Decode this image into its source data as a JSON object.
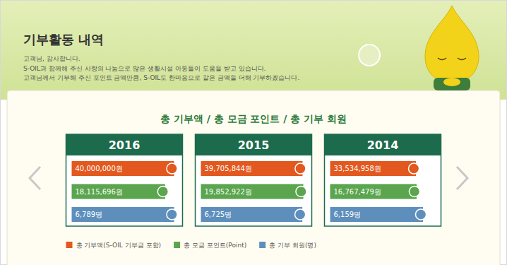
{
  "header": {
    "title": "기부활동 내역",
    "lines": [
      "고객님, 감사합니다.",
      "S-OIL과 함께해 주신 사랑의 나눔으로 많은 생활시설 아동들이 도움을 받고 있습니다.",
      "고객님께서 기부해 주신 포인트 금액만큼, S-OIL도 한마음으로 같은 금액을 더해 기부하겠습니다."
    ]
  },
  "chart_data": {
    "type": "bar",
    "orientation": "horizontal",
    "title": "총 기부액 / 총 모금 포인트 / 총 기부 회원",
    "categories": [
      "2016",
      "2015",
      "2014"
    ],
    "series": [
      {
        "name": "총 기부액(S-OIL 기부금 포함)",
        "color": "#e2581e",
        "values": [
          40000000,
          39705844,
          33534958
        ],
        "value_labels": [
          "40,000,000원",
          "39,705,844원",
          "33,534,958원"
        ]
      },
      {
        "name": "총 모금 포인트(Point)",
        "color": "#5aa54e",
        "values": [
          18115696,
          19852922,
          16767479
        ],
        "value_labels": [
          "18,115,696원",
          "19,852,922원",
          "16,767,479원"
        ]
      },
      {
        "name": "총 기부 회원(명)",
        "color": "#5e8fbc",
        "values": [
          6789,
          6725,
          6159
        ],
        "value_labels": [
          "6,789명",
          "6,725명",
          "6,159명"
        ]
      }
    ],
    "data_labels": true,
    "legend": "bottom",
    "tick_labels": false,
    "grid": false
  }
}
